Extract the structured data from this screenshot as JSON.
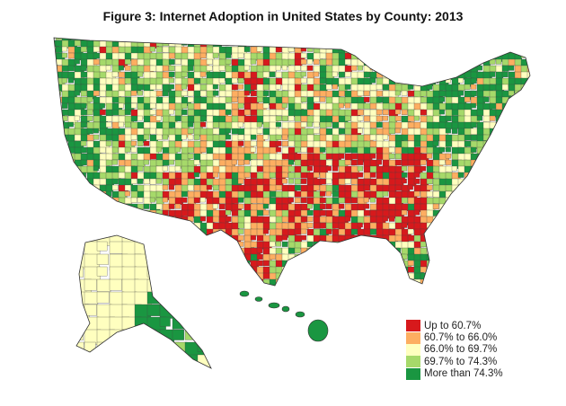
{
  "title": "Figure 3: Internet Adoption in United States by County: 2013",
  "legend": [
    {
      "label": "Up to 60.7%",
      "color": "#d7191c"
    },
    {
      "label": "60.7% to 66.0%",
      "color": "#fdae61"
    },
    {
      "label": "66.0% to 69.7%",
      "color": "#ffffbf"
    },
    {
      "label": "69.7% to 74.3%",
      "color": "#a6d96a"
    },
    {
      "label": "More than 74.3%",
      "color": "#1a9641"
    }
  ],
  "border_color": "#333333"
}
